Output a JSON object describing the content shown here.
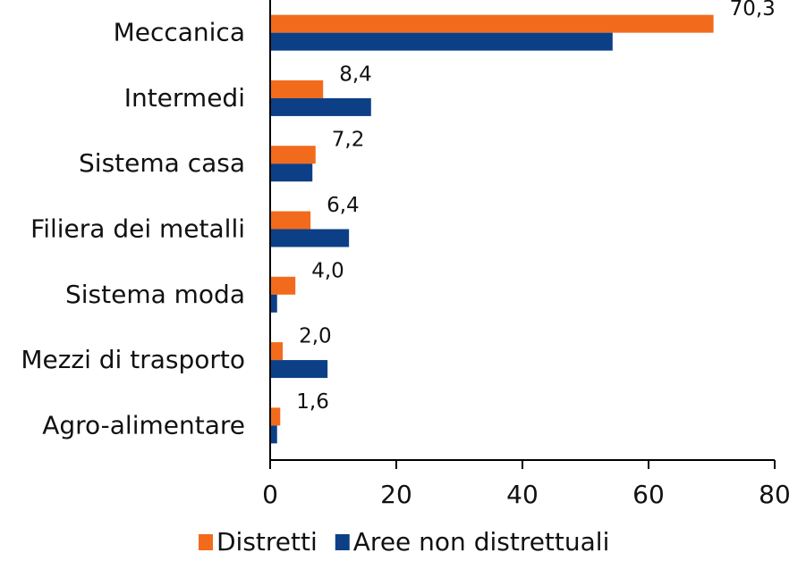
{
  "chart_data": {
    "type": "hbar",
    "categories": [
      "Meccanica",
      "Intermedi",
      "Sistema casa",
      "Filiera dei metalli",
      "Sistema moda",
      "Mezzi di trasporto",
      "Agro-alimentare"
    ],
    "series": [
      {
        "name": "Distretti",
        "color": "#f26b1d",
        "values": [
          70.3,
          8.4,
          7.2,
          6.4,
          4.0,
          2.0,
          1.6
        ],
        "value_labels": [
          "70,3",
          "8,4",
          "7,2",
          "6,4",
          "4,0",
          "2,0",
          "1,6"
        ]
      },
      {
        "name": "Aree non distrettuali",
        "color": "#0d3f86",
        "values": [
          54.3,
          16.0,
          6.7,
          12.5,
          1.1,
          9.1,
          1.1
        ]
      }
    ],
    "xlim": [
      0,
      80
    ],
    "xticks": [
      0,
      20,
      40,
      60,
      80
    ]
  }
}
